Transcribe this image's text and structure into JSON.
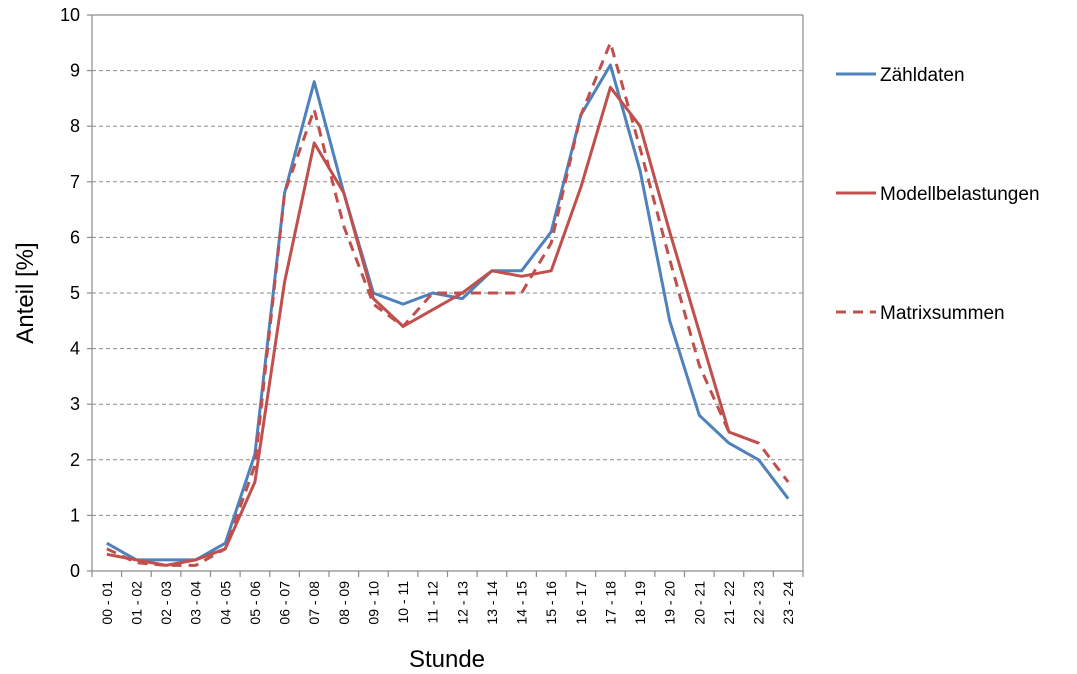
{
  "chart_data": {
    "type": "line",
    "title": "",
    "xlabel": "Stunde",
    "ylabel": "Anteil [%]",
    "ylim": [
      0,
      10
    ],
    "yticks": [
      "0",
      "1",
      "2",
      "3",
      "4",
      "5",
      "6",
      "7",
      "8",
      "9",
      "10"
    ],
    "grid": "horizontal dashed",
    "legend_position": "right",
    "categories": [
      "00 - 01",
      "01 - 02",
      "02 - 03",
      "03 - 04",
      "04 - 05",
      "05 - 06",
      "06 - 07",
      "07 - 08",
      "08 - 09",
      "09 - 10",
      "10 - 11",
      "11 - 12",
      "12 - 13",
      "13 - 14",
      "14 - 15",
      "15 - 16",
      "16 - 17",
      "17 - 18",
      "18 - 19",
      "19 - 20",
      "20 - 21",
      "21 - 22",
      "22 - 23",
      "23 - 24"
    ],
    "series": [
      {
        "name": "Zähldaten",
        "color": "#4f81bd",
        "dash": false,
        "values": [
          0.5,
          0.2,
          0.2,
          0.2,
          0.5,
          2.1,
          6.8,
          8.8,
          6.8,
          5.0,
          4.8,
          5.0,
          4.9,
          5.4,
          5.4,
          6.1,
          8.2,
          9.1,
          7.2,
          4.5,
          2.8,
          2.3,
          2.0,
          1.3
        ]
      },
      {
        "name": "Modellbelastungen",
        "color": "#c0504d",
        "dash": false,
        "values": [
          0.3,
          0.2,
          0.1,
          0.2,
          0.4,
          1.6,
          5.2,
          7.7,
          6.8,
          4.9,
          4.4,
          4.7,
          5.0,
          5.4,
          5.3,
          5.4,
          6.9,
          8.7,
          8.0,
          6.1,
          4.3,
          2.5,
          2.3,
          null
        ]
      },
      {
        "name": "Matrixsummen",
        "color": "#c0504d",
        "dash": true,
        "values": [
          0.4,
          0.15,
          0.1,
          0.1,
          0.4,
          1.9,
          6.8,
          8.3,
          6.2,
          4.8,
          4.4,
          5.0,
          5.0,
          5.0,
          5.0,
          5.9,
          8.2,
          9.5,
          7.6,
          5.6,
          3.7,
          2.5,
          2.3,
          1.6
        ]
      }
    ]
  }
}
